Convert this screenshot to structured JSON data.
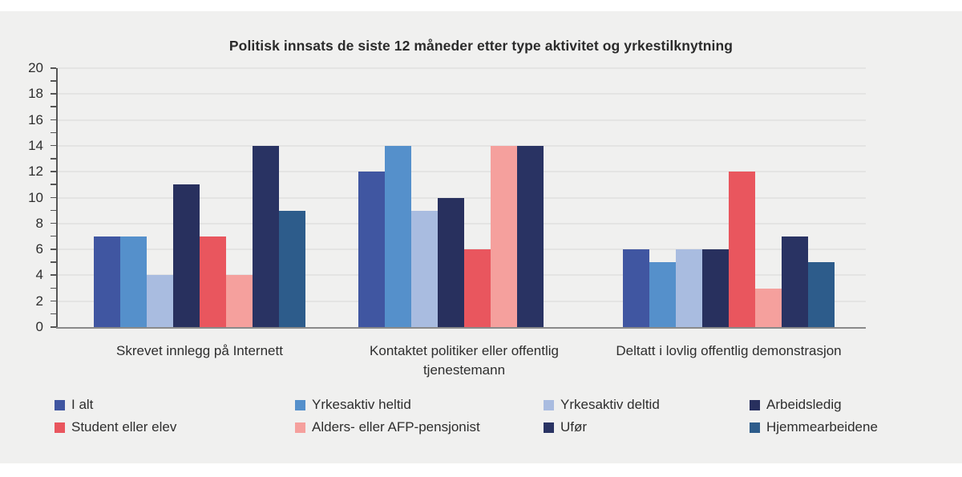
{
  "page": {
    "background": "#ffffff",
    "panel_background": "#f0f0ef",
    "gridline_color": "#e4e4e3",
    "axis_color": "#555555",
    "baseline_color": "#8a8a8a",
    "text_color": "#2e2e2e"
  },
  "chart_data": {
    "type": "bar",
    "title": "Politisk innsats de siste 12 måneder etter type aktivitet og yrkestilknytning",
    "categories": [
      "Skrevet innlegg på Internett",
      "Kontaktet politiker eller offentlig tjenestemann",
      "Deltatt i lovlig offentlig demonstrasjon"
    ],
    "series": [
      {
        "name": "I alt",
        "color": "#4056a1",
        "values": [
          7,
          12,
          6
        ]
      },
      {
        "name": "Yrkesaktiv heltid",
        "color": "#5590cb",
        "values": [
          7,
          14,
          5
        ]
      },
      {
        "name": "Yrkesaktiv deltid",
        "color": "#a9bce0",
        "values": [
          4,
          9,
          6
        ]
      },
      {
        "name": "Arbeidsledig",
        "color": "#28305e",
        "values": [
          11,
          10,
          6
        ]
      },
      {
        "name": "Student eller elev",
        "color": "#e9565e",
        "values": [
          7,
          6,
          12
        ]
      },
      {
        "name": "Alders- eller AFP-pensjonist",
        "color": "#f5a09d",
        "values": [
          4,
          14,
          3
        ]
      },
      {
        "name": "Ufør",
        "color": "#293363",
        "values": [
          14,
          14,
          7
        ]
      },
      {
        "name": "Hjemmearbeidene",
        "color": "#2d5c8b",
        "values": [
          9,
          0,
          5
        ]
      }
    ],
    "ylim": [
      0,
      20
    ],
    "ytick_major_step": 2,
    "ytick_minor_step": 1,
    "grid": true,
    "legend_position": "bottom",
    "legend_rows": [
      [
        "I alt",
        "Yrkesaktiv heltid",
        "Yrkesaktiv deltid",
        "Arbeidsledig"
      ],
      [
        "Student eller elev",
        "Alders- eller AFP-pensjonist",
        "Ufør",
        "Hjemmearbeidene"
      ]
    ]
  }
}
